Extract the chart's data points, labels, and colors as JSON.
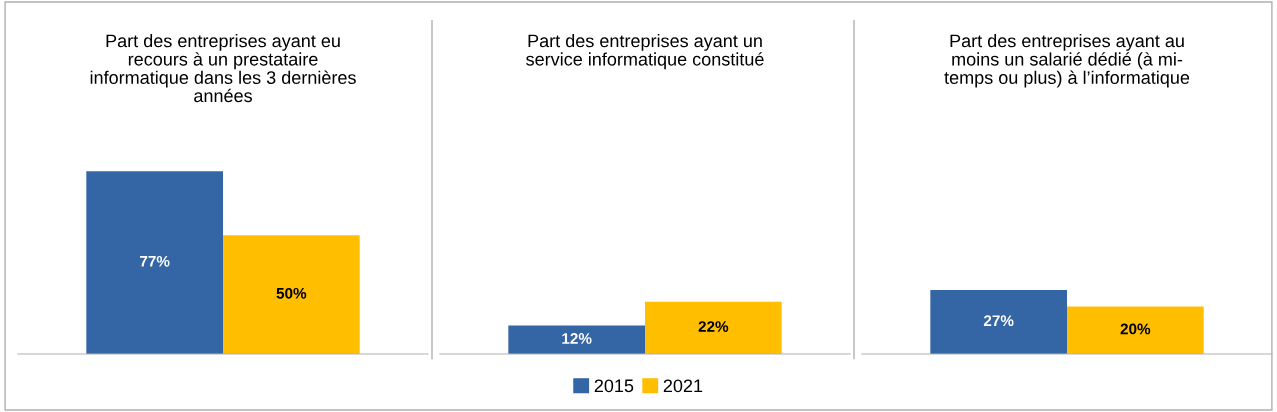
{
  "chart_data": [
    {
      "type": "bar",
      "title": "Part des entreprises ayant eu\nrecours à un prestataire\ninformatique dans les 3 dernières\nannées",
      "categories": [
        null
      ],
      "tick_labels": false,
      "data_labels": true,
      "legend": "bottom",
      "series": [
        {
          "name": "2015",
          "color": "#3465a4",
          "values": [
            77
          ],
          "value_labels": [
            "77%"
          ]
        },
        {
          "name": "2021",
          "color": "#ffbf00",
          "values": [
            50
          ],
          "value_labels": [
            "50%"
          ]
        }
      ]
    },
    {
      "type": "bar",
      "title": "Part des entreprises ayant un\nservice informatique constitué",
      "categories": [
        null
      ],
      "tick_labels": false,
      "data_labels": true,
      "legend": "bottom",
      "series": [
        {
          "name": "2015",
          "color": "#3465a4",
          "values": [
            12
          ],
          "value_labels": [
            "12%"
          ]
        },
        {
          "name": "2021",
          "color": "#ffbf00",
          "values": [
            22
          ],
          "value_labels": [
            "22%"
          ]
        }
      ]
    },
    {
      "type": "bar",
      "title": "Part des entreprises ayant au\nmoins un salarié dédié (à mi-\ntemps ou plus) à l’informatique",
      "categories": [
        null
      ],
      "tick_labels": false,
      "data_labels": true,
      "legend": "bottom",
      "series": [
        {
          "name": "2015",
          "color": "#3465a4",
          "values": [
            27
          ],
          "value_labels": [
            "27%"
          ]
        },
        {
          "name": "2021",
          "color": "#ffbf00",
          "values": [
            20
          ],
          "value_labels": [
            "20%"
          ]
        }
      ]
    }
  ]
}
